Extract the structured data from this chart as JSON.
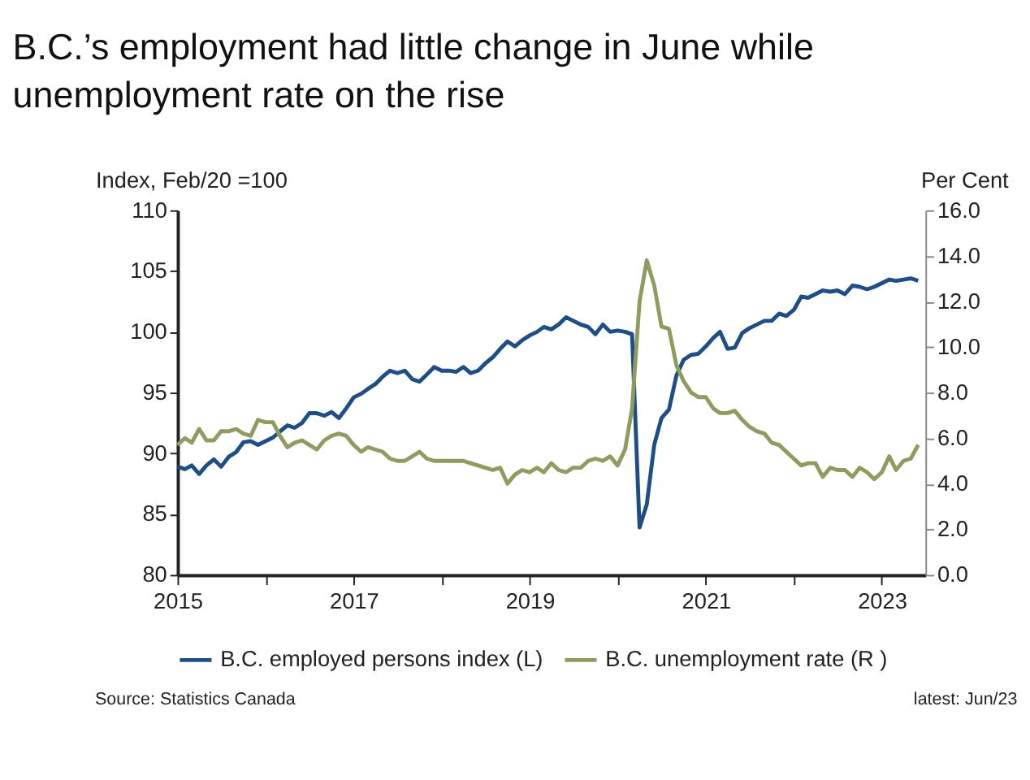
{
  "chart_data": {
    "type": "line",
    "title": "B.C.’s employment had little change in June while unemployment rate on the rise",
    "ylabel": "Index, Feb/20 =100",
    "y2label": "Per Cent",
    "x": [
      "2015-01",
      "2015-02",
      "2015-03",
      "2015-04",
      "2015-05",
      "2015-06",
      "2015-07",
      "2015-08",
      "2015-09",
      "2015-10",
      "2015-11",
      "2015-12",
      "2016-01",
      "2016-02",
      "2016-03",
      "2016-04",
      "2016-05",
      "2016-06",
      "2016-07",
      "2016-08",
      "2016-09",
      "2016-10",
      "2016-11",
      "2016-12",
      "2017-01",
      "2017-02",
      "2017-03",
      "2017-04",
      "2017-05",
      "2017-06",
      "2017-07",
      "2017-08",
      "2017-09",
      "2017-10",
      "2017-11",
      "2017-12",
      "2018-01",
      "2018-02",
      "2018-03",
      "2018-04",
      "2018-05",
      "2018-06",
      "2018-07",
      "2018-08",
      "2018-09",
      "2018-10",
      "2018-11",
      "2018-12",
      "2019-01",
      "2019-02",
      "2019-03",
      "2019-04",
      "2019-05",
      "2019-06",
      "2019-07",
      "2019-08",
      "2019-09",
      "2019-10",
      "2019-11",
      "2019-12",
      "2020-01",
      "2020-02",
      "2020-03",
      "2020-04",
      "2020-05",
      "2020-06",
      "2020-07",
      "2020-08",
      "2020-09",
      "2020-10",
      "2020-11",
      "2020-12",
      "2021-01",
      "2021-02",
      "2021-03",
      "2021-04",
      "2021-05",
      "2021-06",
      "2021-07",
      "2021-08",
      "2021-09",
      "2021-10",
      "2021-11",
      "2021-12",
      "2022-01",
      "2022-02",
      "2022-03",
      "2022-04",
      "2022-05",
      "2022-06",
      "2022-07",
      "2022-08",
      "2022-09",
      "2022-10",
      "2022-11",
      "2022-12",
      "2023-01",
      "2023-02",
      "2023-03",
      "2023-04",
      "2023-05",
      "2023-06"
    ],
    "series": [
      {
        "name": "B.C. employed persons index (L)",
        "color": "#1f4e87",
        "values": [
          88.9,
          88.7,
          89.0,
          88.3,
          89.0,
          89.5,
          88.9,
          89.7,
          90.1,
          90.9,
          91.0,
          90.7,
          91.0,
          91.3,
          91.8,
          92.3,
          92.1,
          92.5,
          93.3,
          93.3,
          93.1,
          93.4,
          92.9,
          93.7,
          94.6,
          94.9,
          95.3,
          95.7,
          96.3,
          96.8,
          96.6,
          96.8,
          96.1,
          95.9,
          96.5,
          97.1,
          96.8,
          96.8,
          96.7,
          97.1,
          96.6,
          96.8,
          97.4,
          97.9,
          98.6,
          99.2,
          98.8,
          99.3,
          99.7,
          100.0,
          100.4,
          100.2,
          100.6,
          101.2,
          100.9,
          100.6,
          100.4,
          99.8,
          100.6,
          100.0,
          100.1,
          100.0,
          99.8,
          83.9,
          85.8,
          90.7,
          92.9,
          93.6,
          96.4,
          97.7,
          98.1,
          98.2,
          98.8,
          99.5,
          100.0,
          98.6,
          98.7,
          99.9,
          100.3,
          100.6,
          100.9,
          100.9,
          101.5,
          101.3,
          101.8,
          102.9,
          102.8,
          103.1,
          103.4,
          103.3,
          103.4,
          103.1,
          103.8,
          103.7,
          103.5,
          103.7,
          104.0,
          104.3,
          104.2,
          104.3,
          104.4,
          104.2
        ]
      },
      {
        "name": "B.C. unemployment rate (R )",
        "color": "#8f9c5f",
        "axis": "y2",
        "values": [
          5.7,
          6.0,
          5.8,
          6.4,
          5.9,
          5.9,
          6.3,
          6.3,
          6.4,
          6.2,
          6.1,
          6.8,
          6.7,
          6.7,
          6.1,
          5.6,
          5.8,
          5.9,
          5.7,
          5.5,
          5.9,
          6.1,
          6.2,
          6.1,
          5.7,
          5.4,
          5.6,
          5.5,
          5.4,
          5.1,
          5.0,
          5.0,
          5.2,
          5.4,
          5.1,
          5.0,
          5.0,
          5.0,
          5.0,
          5.0,
          4.9,
          4.8,
          4.7,
          4.6,
          4.7,
          4.0,
          4.4,
          4.6,
          4.5,
          4.7,
          4.5,
          4.9,
          4.6,
          4.5,
          4.7,
          4.7,
          5.0,
          5.1,
          5.0,
          5.2,
          4.8,
          5.5,
          7.3,
          12.0,
          13.8,
          12.7,
          10.9,
          10.8,
          9.2,
          8.5,
          8.0,
          7.8,
          7.8,
          7.3,
          7.1,
          7.1,
          7.2,
          6.8,
          6.5,
          6.3,
          6.2,
          5.8,
          5.7,
          5.4,
          5.1,
          4.8,
          4.9,
          4.9,
          4.3,
          4.7,
          4.6,
          4.6,
          4.3,
          4.7,
          4.5,
          4.2,
          4.5,
          5.2,
          4.6,
          5.0,
          5.1,
          5.7
        ]
      }
    ],
    "xlim": [
      "2015-01",
      "2023-07"
    ],
    "xticks": [
      {
        "value": "2015",
        "label": "2015"
      },
      {
        "value": "2016",
        "label": null
      },
      {
        "value": "2017",
        "label": "2017"
      },
      {
        "value": "2018",
        "label": null
      },
      {
        "value": "2019",
        "label": "2019"
      },
      {
        "value": "2020",
        "label": null
      },
      {
        "value": "2021",
        "label": "2021"
      },
      {
        "value": "2022",
        "label": null
      },
      {
        "value": "2023",
        "label": "2023"
      }
    ],
    "ylim": [
      80,
      110
    ],
    "yticks": [
      80,
      85,
      90,
      95,
      100,
      105,
      110
    ],
    "y2lim": [
      0,
      16
    ],
    "y2ticks": [
      {
        "value": 0,
        "label": "0.0"
      },
      {
        "value": 2,
        "label": "2.0"
      },
      {
        "value": 4,
        "label": "4.0"
      },
      {
        "value": 6,
        "label": "6.0"
      },
      {
        "value": 8,
        "label": "8.0"
      },
      {
        "value": 10,
        "label": "10.0"
      },
      {
        "value": 12,
        "label": "12.0"
      },
      {
        "value": 14,
        "label": "14.0"
      },
      {
        "value": 16,
        "label": "16.0"
      }
    ],
    "grid": false,
    "legend": "bottom",
    "marker": "none",
    "line_style": "solid",
    "annotations": [
      "Source: Statistics Canada",
      "latest: Jun/23"
    ]
  }
}
